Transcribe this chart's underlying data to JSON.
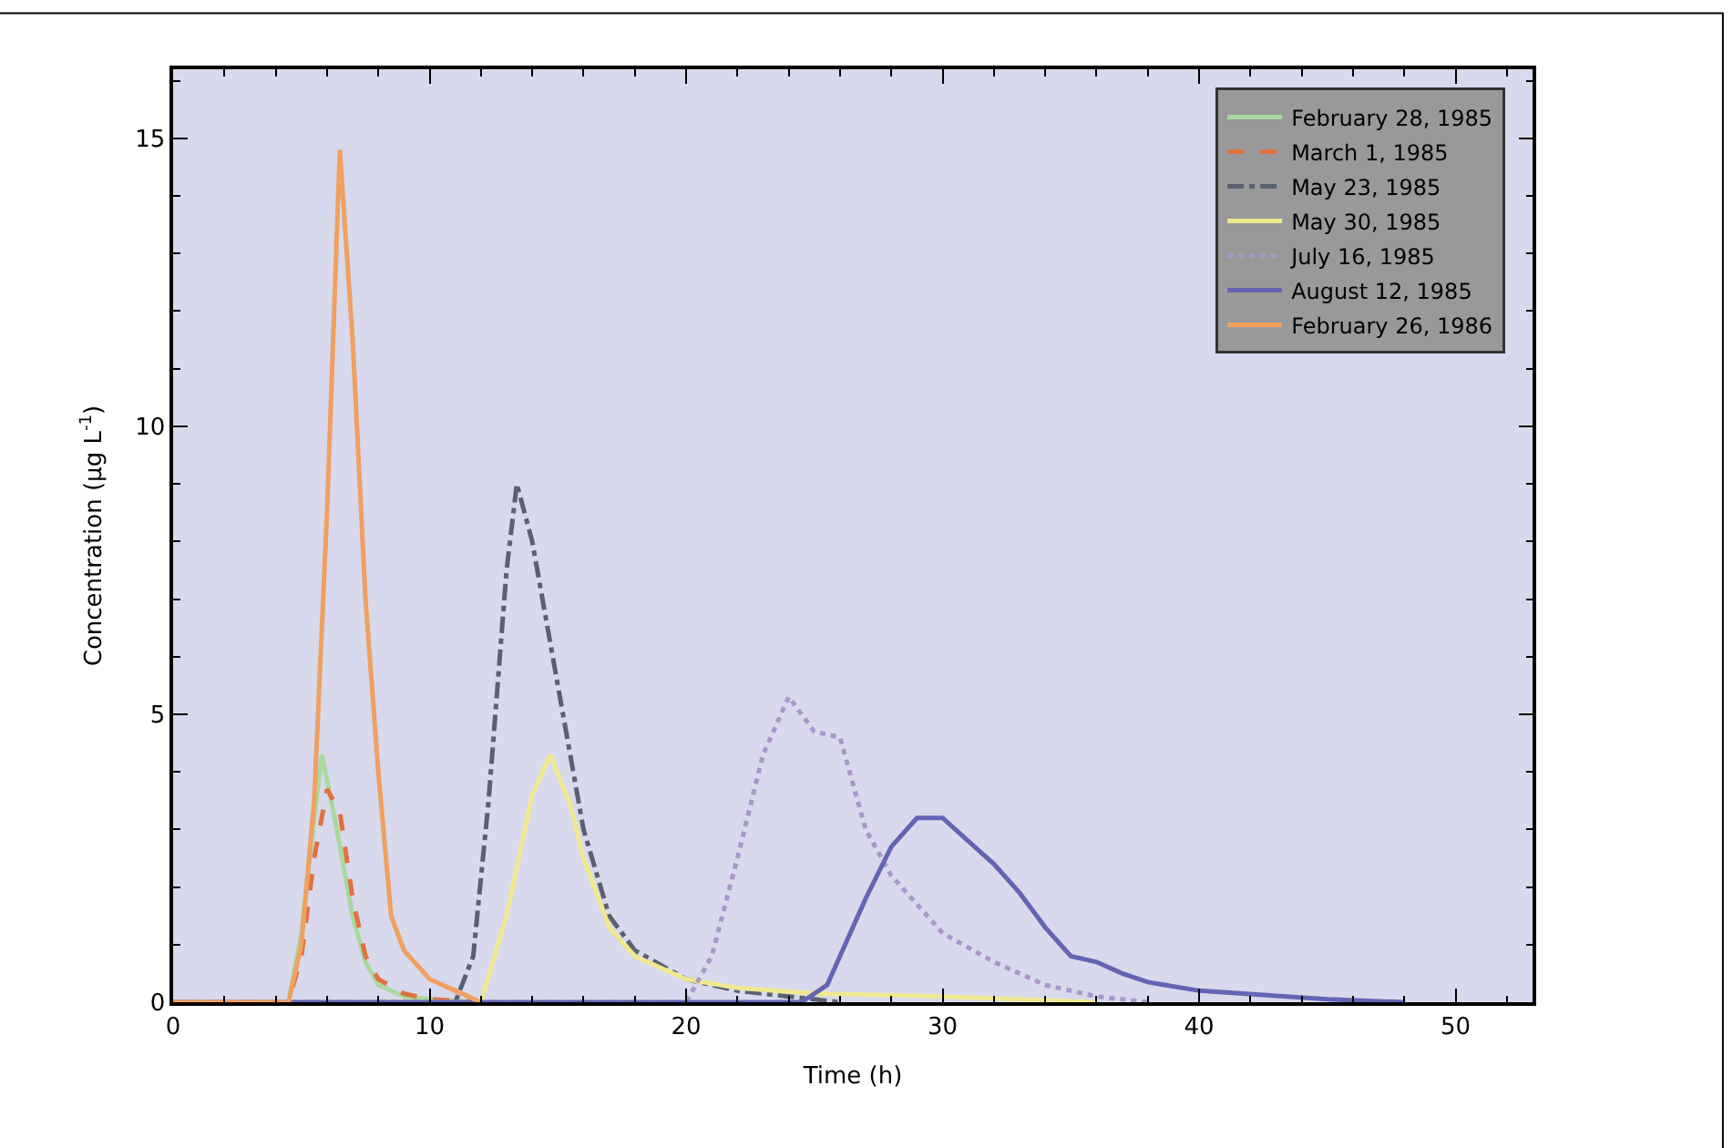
{
  "chart_data": {
    "type": "line",
    "xlabel": "Time (h)",
    "ylabel": "Concentration (μg L$^{-1}$)",
    "xlim": [
      0,
      53
    ],
    "ylim": [
      0,
      16.2
    ],
    "xticks": [
      0,
      10,
      20,
      30,
      40,
      50
    ],
    "yticks": [
      0,
      5,
      10,
      15
    ],
    "grid": false,
    "legend": "top right",
    "series": [
      {
        "name": "February 28, 1985",
        "color": "#a8d8a0",
        "line_style": "solid",
        "x": [
          0,
          4.5,
          5,
          5.5,
          5.8,
          6.3,
          7,
          7.5,
          8,
          9,
          10,
          12
        ],
        "values": [
          0,
          0,
          1.2,
          3.2,
          4.3,
          3.2,
          1.5,
          0.7,
          0.3,
          0.1,
          0.05,
          0
        ]
      },
      {
        "name": "March 1, 1985",
        "color": "#e07040",
        "line_style": "dashed",
        "x": [
          0,
          4.5,
          5,
          5.5,
          6,
          6.5,
          7,
          7.5,
          8,
          9,
          10,
          12
        ],
        "values": [
          0,
          0,
          0.8,
          2.5,
          3.7,
          3.3,
          1.8,
          0.8,
          0.4,
          0.15,
          0.05,
          0
        ]
      },
      {
        "name": "May 23, 1985",
        "color": "#5a6070",
        "line_style": "dashdot",
        "x": [
          0,
          11,
          11.7,
          12.3,
          13,
          13.4,
          14,
          15,
          16,
          17,
          18,
          20,
          22,
          24,
          26
        ],
        "values": [
          0,
          0,
          0.8,
          3.5,
          7.5,
          9.0,
          8.0,
          5.5,
          3.0,
          1.5,
          0.9,
          0.4,
          0.2,
          0.1,
          0
        ]
      },
      {
        "name": "May 30, 1985",
        "color": "#f0e890",
        "line_style": "solid",
        "x": [
          0,
          12,
          13,
          14,
          14.7,
          15.5,
          16,
          17,
          18,
          20,
          22,
          25,
          30,
          36
        ],
        "values": [
          0,
          0,
          1.5,
          3.6,
          4.3,
          3.4,
          2.5,
          1.3,
          0.8,
          0.4,
          0.25,
          0.15,
          0.1,
          0
        ]
      },
      {
        "name": "July 16, 1985",
        "color": "#a898c8",
        "line_style": "dot",
        "x": [
          0,
          20,
          21,
          22,
          23,
          24,
          25,
          26,
          27,
          28,
          30,
          32,
          34,
          36,
          38
        ],
        "values": [
          0,
          0,
          0.8,
          2.5,
          4.3,
          5.3,
          4.7,
          4.6,
          3.0,
          2.2,
          1.2,
          0.7,
          0.3,
          0.1,
          0
        ]
      },
      {
        "name": "August 12, 1985",
        "color": "#6464b4",
        "line_style": "solid",
        "x": [
          0,
          24.5,
          25.5,
          26.5,
          27,
          28,
          29,
          30,
          31,
          32,
          33,
          34,
          35,
          36,
          37,
          38,
          40,
          45,
          48
        ],
        "values": [
          0,
          0,
          0.3,
          1.3,
          1.8,
          2.7,
          3.2,
          3.2,
          2.8,
          2.4,
          1.9,
          1.3,
          0.8,
          0.7,
          0.5,
          0.35,
          0.2,
          0.05,
          0
        ]
      },
      {
        "name": "February 26, 1986",
        "color": "#f0a060",
        "line_style": "solid",
        "x": [
          0,
          4.5,
          5,
          5.5,
          6,
          6.5,
          7,
          7.5,
          8,
          8.5,
          9,
          10,
          11,
          12
        ],
        "values": [
          0,
          0,
          1.0,
          3.5,
          8.5,
          14.8,
          11.5,
          7.0,
          4.0,
          1.5,
          0.9,
          0.4,
          0.2,
          0
        ]
      }
    ]
  }
}
